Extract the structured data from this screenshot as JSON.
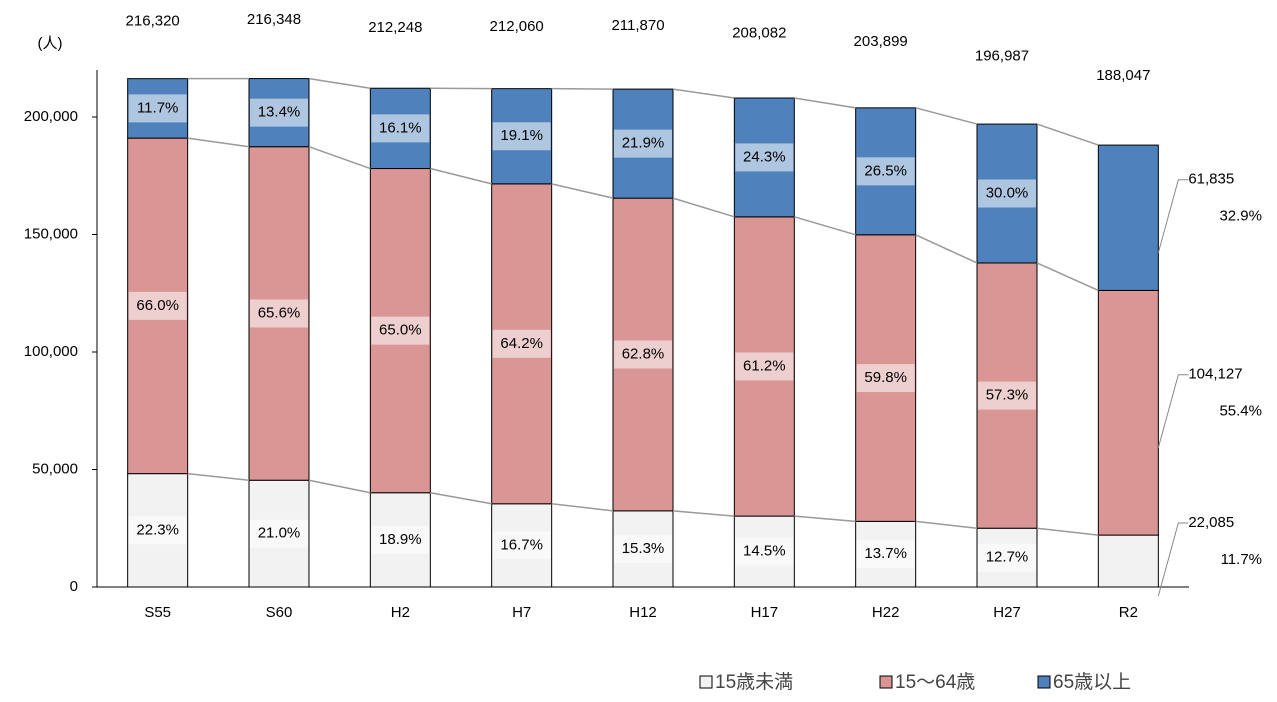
{
  "chart_data": {
    "type": "stacked_bar",
    "y_unit": "(人)",
    "categories": [
      "S55",
      "S60",
      "H2",
      "H7",
      "H12",
      "H17",
      "H22",
      "H27",
      "R2"
    ],
    "series": [
      {
        "name": "15歳未満",
        "color": "#f2f2f2",
        "values": [
          48239,
          45433,
          40115,
          35414,
          32416,
          30172,
          27934,
          25017,
          22085
        ],
        "value_labels": [
          null,
          null,
          null,
          null,
          null,
          null,
          null,
          null,
          "22,085"
        ],
        "percent_labels": [
          "22.3%",
          "21.0%",
          "18.9%",
          "16.7%",
          "15.3%",
          "14.5%",
          "13.7%",
          "12.7%",
          "11.7%"
        ]
      },
      {
        "name": "15～64歳",
        "color": "#d99694",
        "values": [
          142771,
          141924,
          137961,
          136143,
          133054,
          127346,
          121932,
          112874,
          104127
        ],
        "value_labels": [
          null,
          null,
          null,
          null,
          null,
          null,
          null,
          null,
          "104,127"
        ],
        "percent_labels": [
          "66.0%",
          "65.6%",
          "65.0%",
          "64.2%",
          "62.8%",
          "61.2%",
          "59.8%",
          "57.3%",
          "55.4%"
        ]
      },
      {
        "name": "65歳以上",
        "color": "#4f81bd",
        "values": [
          25309,
          28991,
          34172,
          40503,
          46400,
          50564,
          54033,
          59096,
          61835
        ],
        "value_labels": [
          null,
          null,
          null,
          null,
          null,
          null,
          null,
          null,
          "61,835"
        ],
        "percent_labels": [
          "11.7%",
          "13.4%",
          "16.1%",
          "19.1%",
          "21.9%",
          "24.3%",
          "26.5%",
          "30.0%",
          "32.9%"
        ]
      }
    ],
    "total_labels": [
      "216,320",
      "216,348",
      "212,248",
      "212,060",
      "211,870",
      "208,082",
      "203,899",
      "196,987",
      "188,047"
    ],
    "ylim": [
      0,
      220000
    ],
    "yticks": [
      0,
      {
        "value": 50000,
        "label": "50,000"
      },
      {
        "value": 100000,
        "label": "100,000"
      },
      {
        "value": 150000,
        "label": "150,000"
      },
      {
        "value": 200000,
        "label": "200,000"
      }
    ],
    "legend": "bottom-right"
  }
}
